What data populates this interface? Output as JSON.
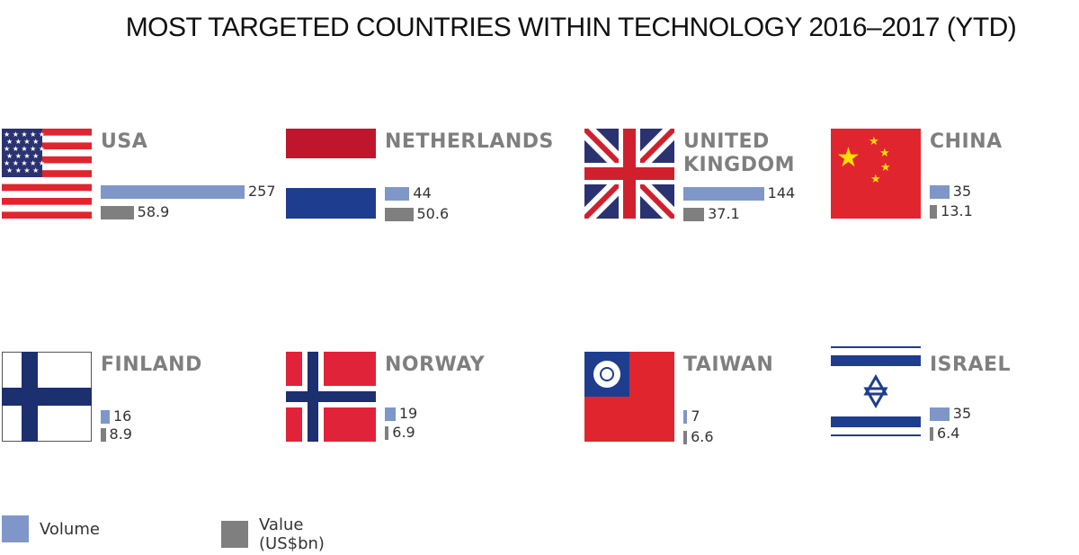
{
  "title": "MOST TARGETED COUNTRIES WITHIN TECHNOLOGY 2016–2017 (YTD)",
  "colors": {
    "volume": "#7f97c8",
    "value": "#7f7f80",
    "country_label": "#7f7f80"
  },
  "legend": {
    "volume_label": "Volume",
    "value_label": "Value (US$bn)"
  },
  "chart_data": {
    "type": "bar",
    "title": "MOST TARGETED COUNTRIES WITHIN TECHNOLOGY 2016–2017 (YTD)",
    "categories": [
      "USA",
      "NETHERLANDS",
      "UNITED KINGDOM",
      "CHINA",
      "FINLAND",
      "NORWAY",
      "TAIWAN",
      "ISRAEL"
    ],
    "series": [
      {
        "name": "Volume",
        "values": [
          257,
          44,
          144,
          35,
          16,
          19,
          7,
          35
        ]
      },
      {
        "name": "Value (US$bn)",
        "values": [
          58.9,
          50.6,
          37.1,
          13.1,
          8.9,
          6.9,
          6.6,
          6.4
        ]
      }
    ],
    "legend": "bottom-left",
    "grid": false
  },
  "countries": [
    {
      "name": "USA",
      "volume": 257,
      "volume_label": "257",
      "value": 58.9,
      "value_label": "58.9",
      "flag": "usa-flag"
    },
    {
      "name": "NETHERLANDS",
      "volume": 44,
      "volume_label": "44",
      "value": 50.6,
      "value_label": "50.6",
      "flag": "netherlands-flag"
    },
    {
      "name": "UNITED\nKINGDOM",
      "volume": 144,
      "volume_label": "144",
      "value": 37.1,
      "value_label": "37.1",
      "flag": "uk-flag"
    },
    {
      "name": "CHINA",
      "volume": 35,
      "volume_label": "35",
      "value": 13.1,
      "value_label": "13.1",
      "flag": "china-flag"
    },
    {
      "name": "FINLAND",
      "volume": 16,
      "volume_label": "16",
      "value": 8.9,
      "value_label": "8.9",
      "flag": "finland-flag"
    },
    {
      "name": "NORWAY",
      "volume": 19,
      "volume_label": "19",
      "value": 6.9,
      "value_label": "6.9",
      "flag": "norway-flag"
    },
    {
      "name": "TAIWAN",
      "volume": 7,
      "volume_label": "7",
      "value": 6.6,
      "value_label": "6.6",
      "flag": "taiwan-flag"
    },
    {
      "name": "ISRAEL",
      "volume": 35,
      "volume_label": "35",
      "value": 6.4,
      "value_label": "6.4",
      "flag": "israel-flag"
    }
  ]
}
